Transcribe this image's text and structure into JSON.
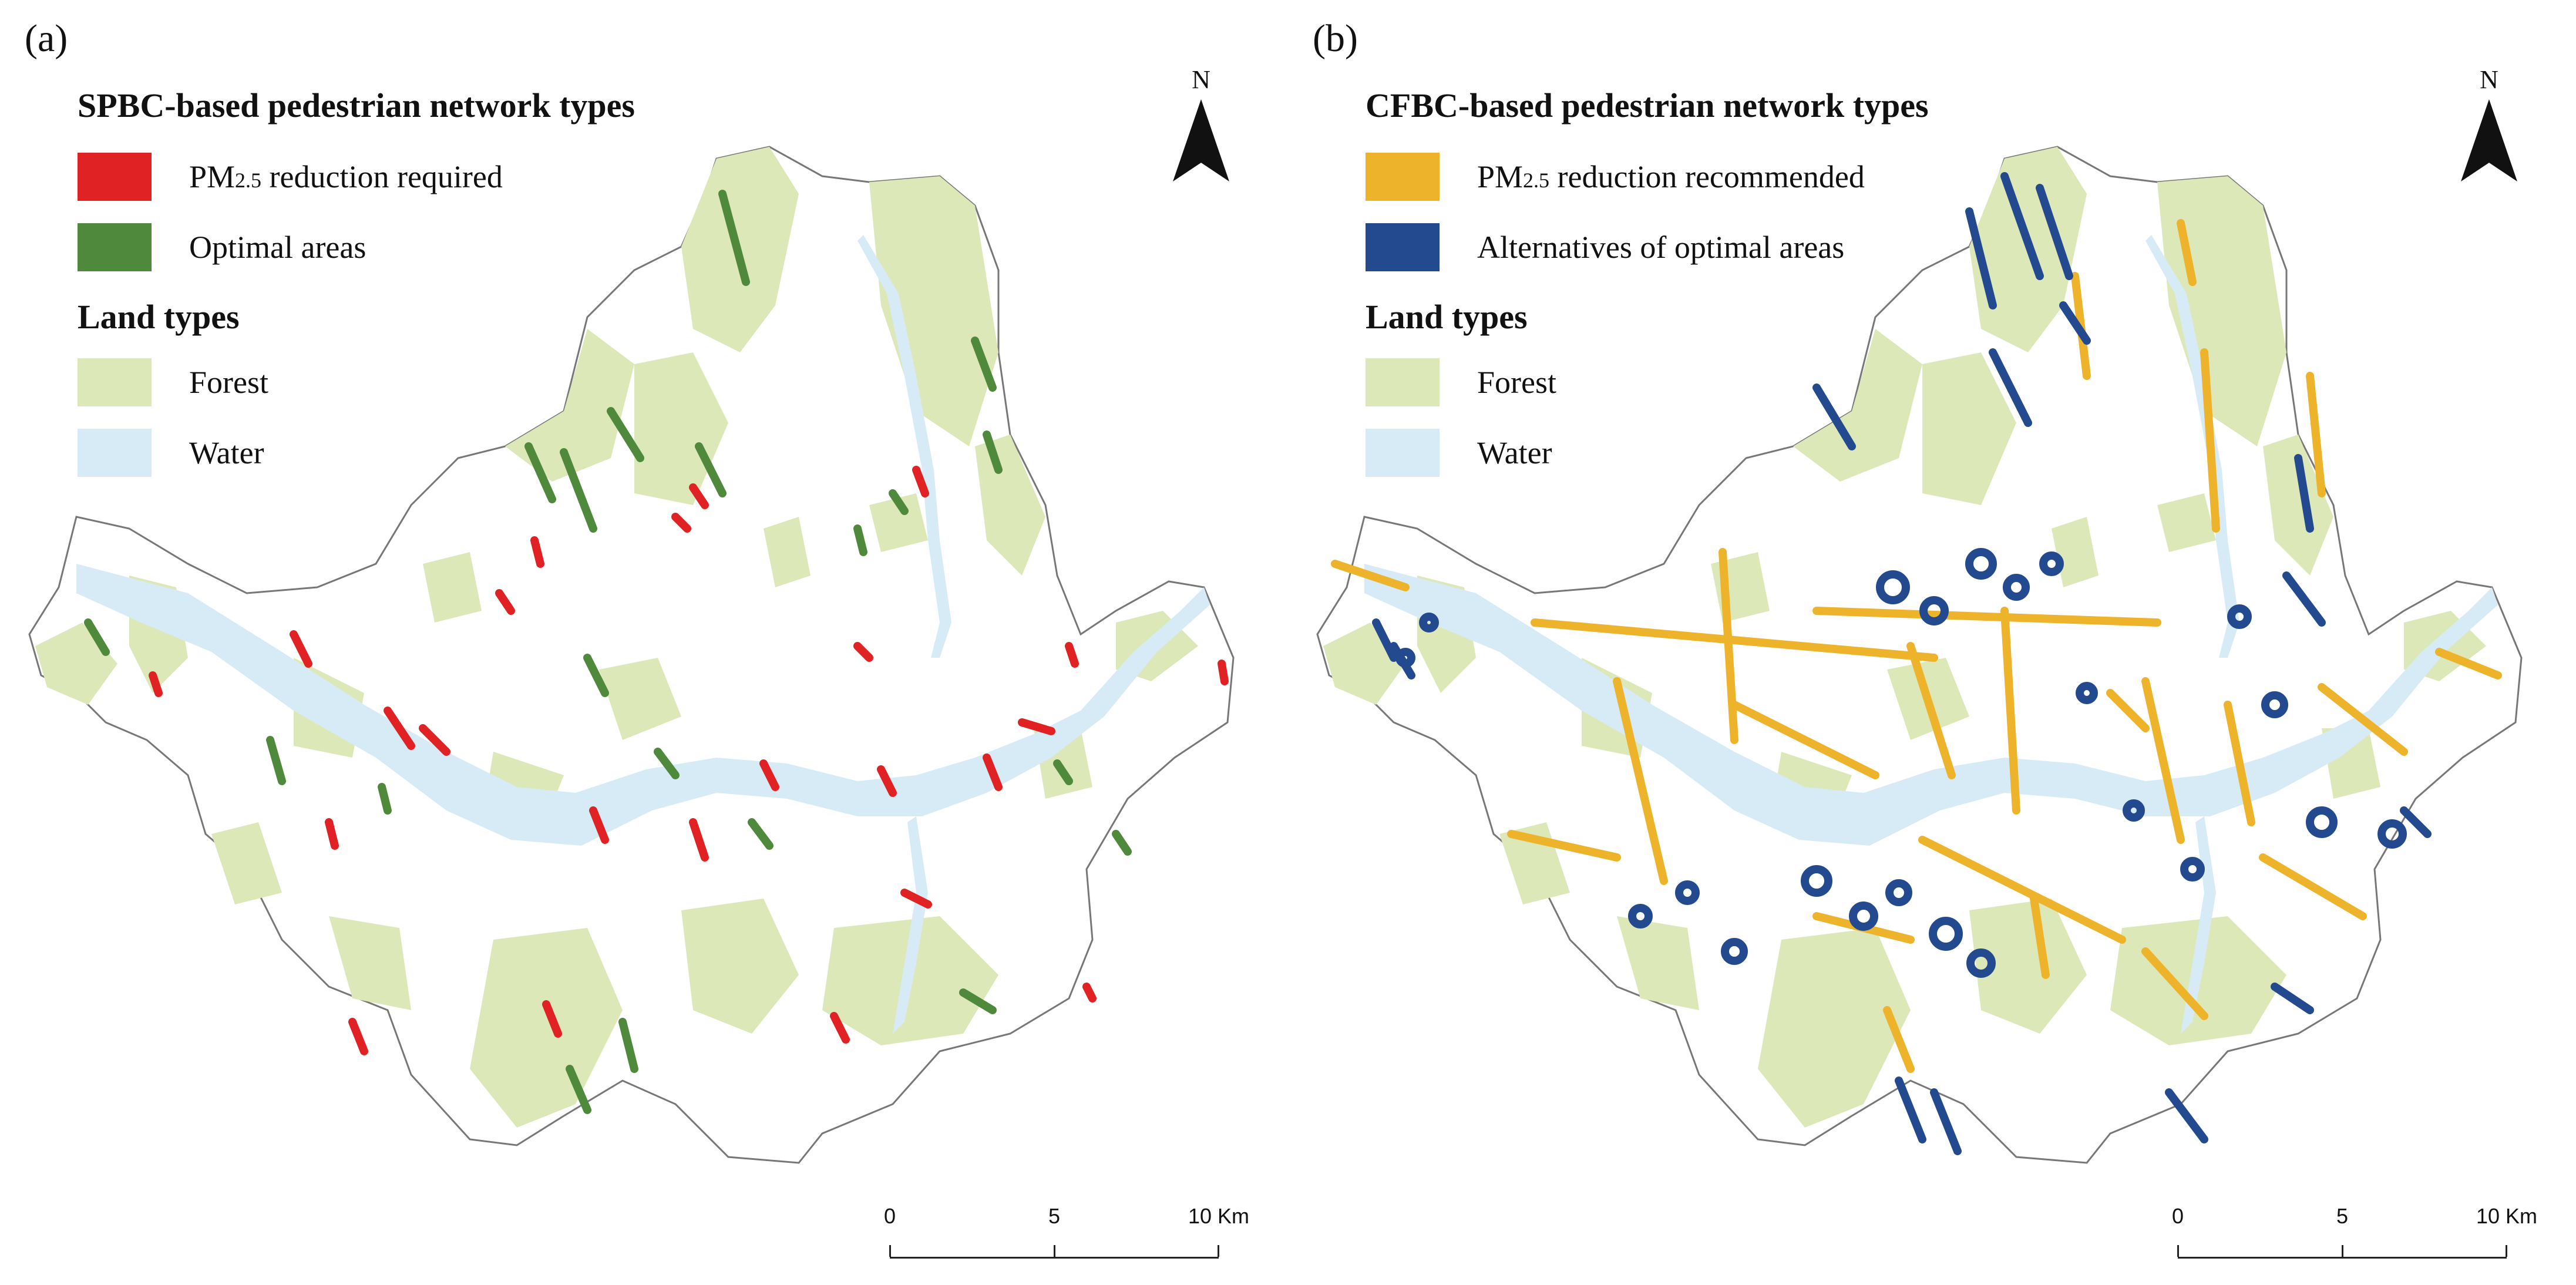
{
  "panels": [
    {
      "label": "(a)",
      "legend_title": "SPBC-based pedestrian network types",
      "items": [
        {
          "prefix": "PM",
          "sub": "2.5",
          "suffix": " reduction required",
          "color": "#e02224"
        },
        {
          "label": "Optimal areas",
          "color": "#4f8a3c"
        }
      ]
    },
    {
      "label": "(b)",
      "legend_title": "CFBC-based pedestrian network types",
      "items": [
        {
          "prefix": "PM",
          "sub": "2.5",
          "suffix": " reduction recommended",
          "color": "#edb32a"
        },
        {
          "label": "Alternatives of optimal areas",
          "color": "#234a8f"
        }
      ]
    }
  ],
  "land_types": {
    "title": "Land types",
    "items": [
      {
        "label": "Forest",
        "color": "#dde8b8"
      },
      {
        "label": "Water",
        "color": "#d6ebf6"
      }
    ]
  },
  "north_label": "N",
  "scale": {
    "ticks": [
      "0",
      "5",
      "10 Km"
    ]
  },
  "colors": {
    "boundary": "#777777"
  }
}
